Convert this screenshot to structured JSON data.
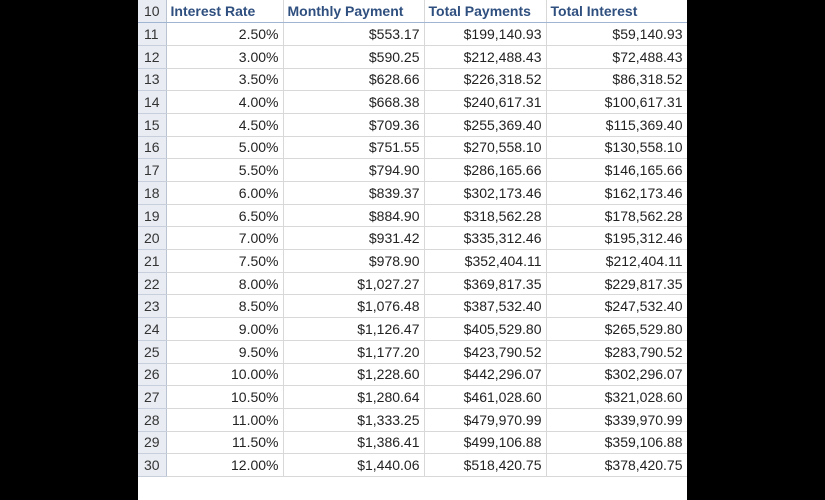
{
  "header": {
    "row_number": "10",
    "columns": [
      "Interest Rate",
      "Monthly Payment",
      "Total Payments",
      "Total Interest"
    ]
  },
  "rows": [
    {
      "row": "11",
      "rate": "2.50%",
      "monthly": "$553.17",
      "total_payments": "$199,140.93",
      "total_interest": "$59,140.93"
    },
    {
      "row": "12",
      "rate": "3.00%",
      "monthly": "$590.25",
      "total_payments": "$212,488.43",
      "total_interest": "$72,488.43"
    },
    {
      "row": "13",
      "rate": "3.50%",
      "monthly": "$628.66",
      "total_payments": "$226,318.52",
      "total_interest": "$86,318.52"
    },
    {
      "row": "14",
      "rate": "4.00%",
      "monthly": "$668.38",
      "total_payments": "$240,617.31",
      "total_interest": "$100,617.31"
    },
    {
      "row": "15",
      "rate": "4.50%",
      "monthly": "$709.36",
      "total_payments": "$255,369.40",
      "total_interest": "$115,369.40"
    },
    {
      "row": "16",
      "rate": "5.00%",
      "monthly": "$751.55",
      "total_payments": "$270,558.10",
      "total_interest": "$130,558.10"
    },
    {
      "row": "17",
      "rate": "5.50%",
      "monthly": "$794.90",
      "total_payments": "$286,165.66",
      "total_interest": "$146,165.66"
    },
    {
      "row": "18",
      "rate": "6.00%",
      "monthly": "$839.37",
      "total_payments": "$302,173.46",
      "total_interest": "$162,173.46"
    },
    {
      "row": "19",
      "rate": "6.50%",
      "monthly": "$884.90",
      "total_payments": "$318,562.28",
      "total_interest": "$178,562.28"
    },
    {
      "row": "20",
      "rate": "7.00%",
      "monthly": "$931.42",
      "total_payments": "$335,312.46",
      "total_interest": "$195,312.46"
    },
    {
      "row": "21",
      "rate": "7.50%",
      "monthly": "$978.90",
      "total_payments": "$352,404.11",
      "total_interest": "$212,404.11"
    },
    {
      "row": "22",
      "rate": "8.00%",
      "monthly": "$1,027.27",
      "total_payments": "$369,817.35",
      "total_interest": "$229,817.35"
    },
    {
      "row": "23",
      "rate": "8.50%",
      "monthly": "$1,076.48",
      "total_payments": "$387,532.40",
      "total_interest": "$247,532.40"
    },
    {
      "row": "24",
      "rate": "9.00%",
      "monthly": "$1,126.47",
      "total_payments": "$405,529.80",
      "total_interest": "$265,529.80"
    },
    {
      "row": "25",
      "rate": "9.50%",
      "monthly": "$1,177.20",
      "total_payments": "$423,790.52",
      "total_interest": "$283,790.52"
    },
    {
      "row": "26",
      "rate": "10.00%",
      "monthly": "$1,228.60",
      "total_payments": "$442,296.07",
      "total_interest": "$302,296.07"
    },
    {
      "row": "27",
      "rate": "10.50%",
      "monthly": "$1,280.64",
      "total_payments": "$461,028.60",
      "total_interest": "$321,028.60"
    },
    {
      "row": "28",
      "rate": "11.00%",
      "monthly": "$1,333.25",
      "total_payments": "$479,970.99",
      "total_interest": "$339,970.99"
    },
    {
      "row": "29",
      "rate": "11.50%",
      "monthly": "$1,386.41",
      "total_payments": "$499,106.88",
      "total_interest": "$359,106.88"
    },
    {
      "row": "30",
      "rate": "12.00%",
      "monthly": "$1,440.06",
      "total_payments": "$518,420.75",
      "total_interest": "$378,420.75"
    }
  ]
}
